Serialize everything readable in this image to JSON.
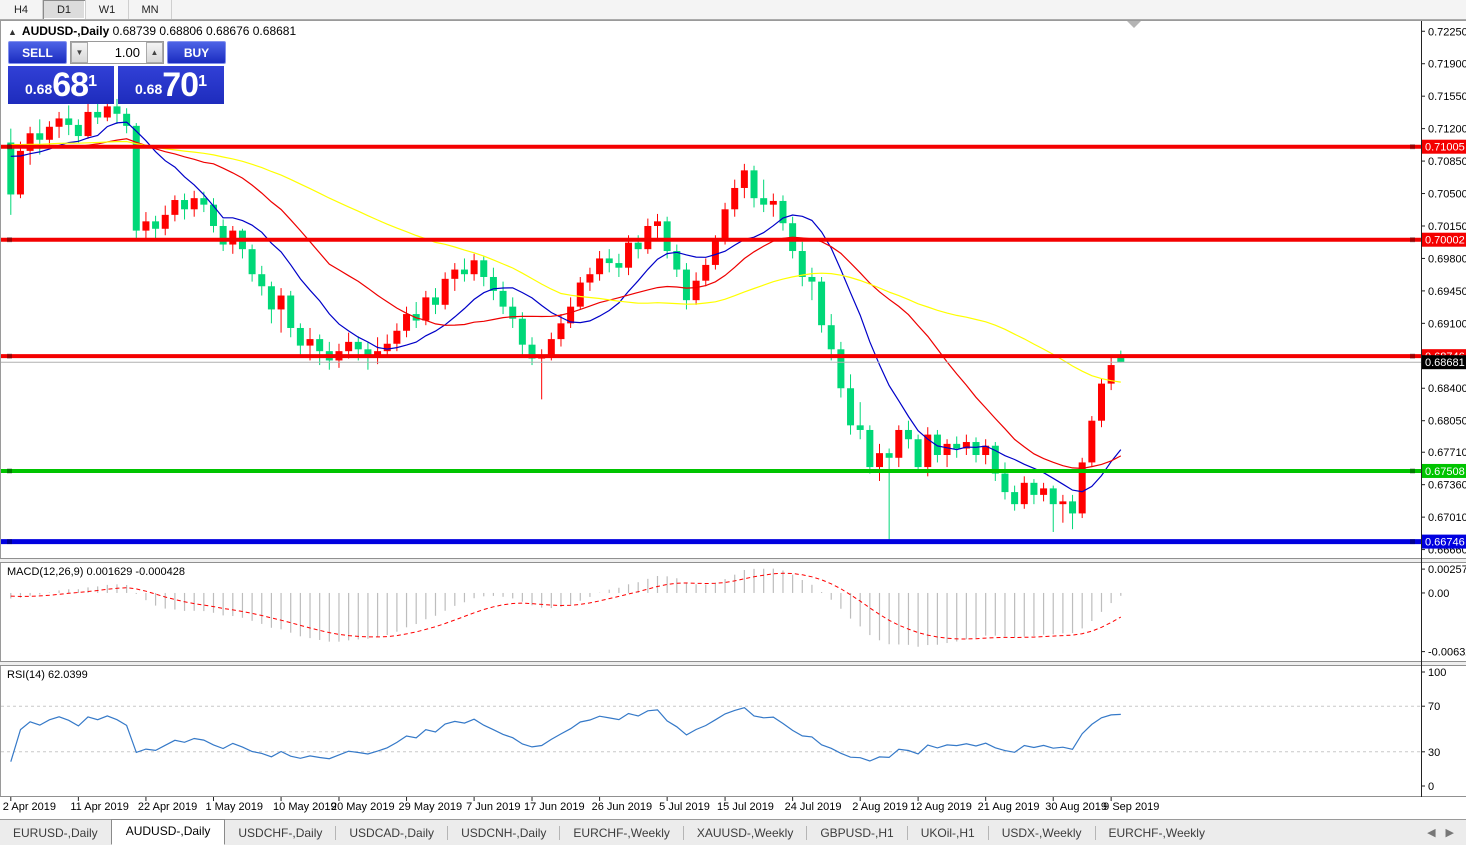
{
  "toolbar": {
    "timeframes": [
      "H4",
      "D1",
      "W1",
      "MN"
    ],
    "active": "D1"
  },
  "chart_header": {
    "collapse_icon": "▲",
    "symbol_title": "AUDUSD-,Daily",
    "ohlc_text": "0.68739 0.68806 0.68676 0.68681"
  },
  "trade_panel": {
    "sell_label": "SELL",
    "buy_label": "BUY",
    "volume": "1.00",
    "spinner_down": "▼",
    "spinner_up": "▲",
    "sell_price": {
      "small": "0.68",
      "big": "68",
      "sup": "1"
    },
    "buy_price": {
      "small": "0.68",
      "big": "70",
      "sup": "1"
    }
  },
  "chart_data": {
    "type": "candlestick",
    "symbol": "AUDUSD-,Daily",
    "timeframe": "D1",
    "price_axis": {
      "min": 0.6658,
      "max": 0.7235,
      "ticks": [
        "0.72250",
        "0.71900",
        "0.71550",
        "0.71200",
        "0.70850",
        "0.70500",
        "0.70150",
        "0.69800",
        "0.69450",
        "0.69100",
        "0.68750",
        "0.68400",
        "0.68050",
        "0.67710",
        "0.67360",
        "0.67010",
        "0.66660"
      ]
    },
    "levels": [
      {
        "price": 0.71005,
        "label": "0.71005",
        "color": "#f40000",
        "width": 4
      },
      {
        "price": 0.70002,
        "label": "0.70002",
        "color": "#f40000",
        "width": 4
      },
      {
        "price": 0.68746,
        "label": "0.68746",
        "color": "#f40000",
        "width": 4
      },
      {
        "price": 0.67508,
        "label": "0.67508",
        "color": "#00c400",
        "width": 4
      },
      {
        "price": 0.66746,
        "label": "0.66746",
        "color": "#0000e0",
        "width": 5
      }
    ],
    "current_price": {
      "value": 0.68681,
      "label": "0.68681"
    },
    "colors": {
      "up": "#ff0000",
      "down": "#00d878",
      "ma_fast": "#0000c8",
      "ma_mid": "#ee0000",
      "ma_slow": "#ffff00",
      "macd_hist": "#bdbdbd",
      "macd_signal": "#ff0000",
      "rsi_line": "#3579c8"
    },
    "date_ticks": [
      {
        "label": "2 Apr 2019",
        "i": 0
      },
      {
        "label": "11 Apr 2019",
        "i": 7
      },
      {
        "label": "22 Apr 2019",
        "i": 14
      },
      {
        "label": "1 May 2019",
        "i": 21
      },
      {
        "label": "10 May 2019",
        "i": 28
      },
      {
        "label": "20 May 2019",
        "i": 34
      },
      {
        "label": "29 May 2019",
        "i": 41
      },
      {
        "label": "7 Jun 2019",
        "i": 48
      },
      {
        "label": "17 Jun 2019",
        "i": 54
      },
      {
        "label": "26 Jun 2019",
        "i": 61
      },
      {
        "label": "5 Jul 2019",
        "i": 68
      },
      {
        "label": "15 Jul 2019",
        "i": 74
      },
      {
        "label": "24 Jul 2019",
        "i": 81
      },
      {
        "label": "2 Aug 2019",
        "i": 88
      },
      {
        "label": "12 Aug 2019",
        "i": 94
      },
      {
        "label": "21 Aug 2019",
        "i": 101
      },
      {
        "label": "30 Aug 2019",
        "i": 108
      },
      {
        "label": "9 Sep 2019",
        "i": 114
      }
    ],
    "candles": [
      [
        0.7105,
        0.712,
        0.7027,
        0.7049
      ],
      [
        0.7049,
        0.7106,
        0.7045,
        0.7096
      ],
      [
        0.7096,
        0.7122,
        0.7081,
        0.7115
      ],
      [
        0.7115,
        0.713,
        0.7092,
        0.7108
      ],
      [
        0.7108,
        0.7128,
        0.71,
        0.7122
      ],
      [
        0.7122,
        0.7138,
        0.711,
        0.7131
      ],
      [
        0.7131,
        0.7145,
        0.7113,
        0.7124
      ],
      [
        0.7124,
        0.713,
        0.7105,
        0.7112
      ],
      [
        0.7112,
        0.7147,
        0.7109,
        0.7138
      ],
      [
        0.7138,
        0.715,
        0.7125,
        0.7132
      ],
      [
        0.7132,
        0.7155,
        0.7128,
        0.7144
      ],
      [
        0.7144,
        0.7152,
        0.7125,
        0.7136
      ],
      [
        0.7136,
        0.7142,
        0.7115,
        0.7123
      ],
      [
        0.7123,
        0.7126,
        0.7002,
        0.701
      ],
      [
        0.701,
        0.703,
        0.7,
        0.702
      ],
      [
        0.702,
        0.7026,
        0.7002,
        0.7012
      ],
      [
        0.7012,
        0.7037,
        0.7005,
        0.7027
      ],
      [
        0.7027,
        0.7048,
        0.702,
        0.7043
      ],
      [
        0.7043,
        0.705,
        0.7022,
        0.7033
      ],
      [
        0.7033,
        0.7053,
        0.7025,
        0.7045
      ],
      [
        0.7045,
        0.7052,
        0.703,
        0.7038
      ],
      [
        0.7038,
        0.7045,
        0.7008,
        0.7015
      ],
      [
        0.7015,
        0.7022,
        0.6988,
        0.6995
      ],
      [
        0.6995,
        0.7015,
        0.6985,
        0.701
      ],
      [
        0.701,
        0.7012,
        0.698,
        0.699
      ],
      [
        0.699,
        0.6995,
        0.6955,
        0.6963
      ],
      [
        0.6963,
        0.6972,
        0.694,
        0.695
      ],
      [
        0.695,
        0.6955,
        0.691,
        0.6925
      ],
      [
        0.6925,
        0.6948,
        0.69,
        0.694
      ],
      [
        0.694,
        0.6945,
        0.6895,
        0.6905
      ],
      [
        0.6905,
        0.691,
        0.6875,
        0.6886
      ],
      [
        0.6886,
        0.6905,
        0.687,
        0.6893
      ],
      [
        0.6893,
        0.6898,
        0.6865,
        0.688
      ],
      [
        0.688,
        0.689,
        0.686,
        0.687
      ],
      [
        0.687,
        0.6888,
        0.6862,
        0.688
      ],
      [
        0.688,
        0.69,
        0.6872,
        0.689
      ],
      [
        0.689,
        0.6896,
        0.687,
        0.6882
      ],
      [
        0.6882,
        0.689,
        0.686,
        0.6873
      ],
      [
        0.6873,
        0.6895,
        0.6866,
        0.688
      ],
      [
        0.688,
        0.6898,
        0.6875,
        0.6888
      ],
      [
        0.6888,
        0.691,
        0.688,
        0.6902
      ],
      [
        0.6902,
        0.6928,
        0.6895,
        0.692
      ],
      [
        0.692,
        0.6933,
        0.6905,
        0.6913
      ],
      [
        0.6913,
        0.6945,
        0.6908,
        0.6938
      ],
      [
        0.6938,
        0.6948,
        0.692,
        0.693
      ],
      [
        0.693,
        0.6965,
        0.6925,
        0.6958
      ],
      [
        0.6958,
        0.6975,
        0.6945,
        0.6968
      ],
      [
        0.6968,
        0.698,
        0.6955,
        0.6963
      ],
      [
        0.6963,
        0.6985,
        0.6956,
        0.6978
      ],
      [
        0.6978,
        0.6982,
        0.695,
        0.696
      ],
      [
        0.696,
        0.697,
        0.6935,
        0.6945
      ],
      [
        0.6945,
        0.6955,
        0.692,
        0.6928
      ],
      [
        0.6928,
        0.6938,
        0.6905,
        0.6915
      ],
      [
        0.6915,
        0.6922,
        0.6875,
        0.6887
      ],
      [
        0.6887,
        0.6895,
        0.6865,
        0.6872
      ],
      [
        0.6872,
        0.6882,
        0.6828,
        0.6876
      ],
      [
        0.6876,
        0.69,
        0.687,
        0.6893
      ],
      [
        0.6893,
        0.692,
        0.6885,
        0.691
      ],
      [
        0.691,
        0.6938,
        0.6905,
        0.6928
      ],
      [
        0.6928,
        0.696,
        0.6925,
        0.6954
      ],
      [
        0.6954,
        0.697,
        0.6945,
        0.6963
      ],
      [
        0.6963,
        0.6988,
        0.6956,
        0.698
      ],
      [
        0.698,
        0.699,
        0.6965,
        0.6975
      ],
      [
        0.6975,
        0.6985,
        0.696,
        0.697
      ],
      [
        0.697,
        0.7005,
        0.6962,
        0.6997
      ],
      [
        0.6997,
        0.7005,
        0.698,
        0.699
      ],
      [
        0.699,
        0.7023,
        0.6985,
        0.7015
      ],
      [
        0.7015,
        0.7028,
        0.7002,
        0.702
      ],
      [
        0.702,
        0.7025,
        0.698,
        0.6988
      ],
      [
        0.6988,
        0.6995,
        0.696,
        0.6968
      ],
      [
        0.6968,
        0.6975,
        0.6925,
        0.6935
      ],
      [
        0.6935,
        0.6965,
        0.693,
        0.6956
      ],
      [
        0.6956,
        0.698,
        0.695,
        0.6973
      ],
      [
        0.6973,
        0.7005,
        0.6968,
        0.7
      ],
      [
        0.7,
        0.704,
        0.6995,
        0.7033
      ],
      [
        0.7033,
        0.7065,
        0.7025,
        0.7056
      ],
      [
        0.7056,
        0.7082,
        0.7045,
        0.7075
      ],
      [
        0.7075,
        0.708,
        0.7035,
        0.7045
      ],
      [
        0.7045,
        0.7065,
        0.703,
        0.7038
      ],
      [
        0.7038,
        0.705,
        0.7025,
        0.7042
      ],
      [
        0.7042,
        0.7048,
        0.701,
        0.7018
      ],
      [
        0.7018,
        0.7025,
        0.698,
        0.6988
      ],
      [
        0.6988,
        0.6998,
        0.695,
        0.696
      ],
      [
        0.696,
        0.697,
        0.6935,
        0.6955
      ],
      [
        0.6955,
        0.696,
        0.69,
        0.6908
      ],
      [
        0.6908,
        0.692,
        0.687,
        0.6882
      ],
      [
        0.6882,
        0.689,
        0.683,
        0.684
      ],
      [
        0.684,
        0.6855,
        0.679,
        0.68
      ],
      [
        0.68,
        0.6825,
        0.6785,
        0.6795
      ],
      [
        0.6795,
        0.68,
        0.6748,
        0.6755
      ],
      [
        0.6755,
        0.678,
        0.674,
        0.677
      ],
      [
        0.677,
        0.6775,
        0.6677,
        0.6765
      ],
      [
        0.6765,
        0.68,
        0.6755,
        0.6795
      ],
      [
        0.6795,
        0.6805,
        0.6775,
        0.6785
      ],
      [
        0.6785,
        0.679,
        0.675,
        0.6755
      ],
      [
        0.6755,
        0.6798,
        0.6745,
        0.679
      ],
      [
        0.679,
        0.6795,
        0.676,
        0.6768
      ],
      [
        0.6768,
        0.6785,
        0.6755,
        0.678
      ],
      [
        0.678,
        0.6788,
        0.6765,
        0.6775
      ],
      [
        0.6775,
        0.679,
        0.6768,
        0.6782
      ],
      [
        0.6782,
        0.6787,
        0.676,
        0.6768
      ],
      [
        0.6768,
        0.6785,
        0.6758,
        0.6778
      ],
      [
        0.6778,
        0.6782,
        0.674,
        0.6748
      ],
      [
        0.6748,
        0.676,
        0.672,
        0.6728
      ],
      [
        0.6728,
        0.6735,
        0.6708,
        0.6715
      ],
      [
        0.6715,
        0.6745,
        0.671,
        0.6738
      ],
      [
        0.6738,
        0.6742,
        0.6715,
        0.6725
      ],
      [
        0.6725,
        0.6738,
        0.6718,
        0.6732
      ],
      [
        0.6732,
        0.6735,
        0.6685,
        0.6715
      ],
      [
        0.6715,
        0.6725,
        0.6695,
        0.6718
      ],
      [
        0.6718,
        0.6725,
        0.6688,
        0.6705
      ],
      [
        0.6705,
        0.6765,
        0.67,
        0.676
      ],
      [
        0.676,
        0.681,
        0.6755,
        0.6805
      ],
      [
        0.6805,
        0.685,
        0.6798,
        0.6845
      ],
      [
        0.6845,
        0.6875,
        0.6838,
        0.6865
      ],
      [
        0.68739,
        0.68806,
        0.68676,
        0.68681
      ]
    ],
    "moving_averages": [
      {
        "name": "ma-fast",
        "period": 10,
        "color": "#0000c8"
      },
      {
        "name": "ma-mid",
        "period": 21,
        "color": "#ee0000"
      },
      {
        "name": "ma-slow",
        "period": 45,
        "color": "#ffff00"
      }
    ],
    "macd": {
      "label": "MACD(12,26,9) 0.001629 -0.000428",
      "fast": 12,
      "slow": 26,
      "signal": 9,
      "value": "0.001629",
      "signal_value": "-0.000428",
      "scale": {
        "max_label": "0.002574",
        "zero_label": "0.00",
        "min_label": "-0.006326",
        "max": 0.002574,
        "min": -0.006326
      }
    },
    "rsi": {
      "label": "RSI(14) 62.0399",
      "period": 14,
      "value": "62.0399",
      "levels": [
        70,
        30
      ],
      "ticks": [
        "100",
        "70",
        "30",
        "0"
      ]
    }
  },
  "scroll_marker": "▼",
  "tabs": {
    "items": [
      "EURUSD-,Daily",
      "AUDUSD-,Daily",
      "USDCHF-,Daily",
      "USDCAD-,Daily",
      "USDCNH-,Daily",
      "EURCHF-,Weekly",
      "XAUUSD-,Weekly",
      "GBPUSD-,H1",
      "UKOil-,H1",
      "USDX-,Weekly",
      "EURCHF-,Weekly"
    ],
    "active_index": 1,
    "arrow_left": "◀",
    "arrow_right": "▶"
  }
}
